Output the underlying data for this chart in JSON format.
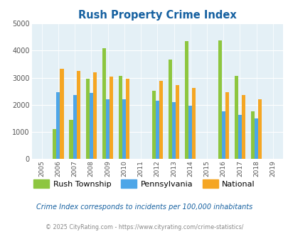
{
  "title": "Rush Property Crime Index",
  "years": [
    2005,
    2006,
    2007,
    2008,
    2009,
    2010,
    2011,
    2012,
    2013,
    2014,
    2015,
    2016,
    2017,
    2018,
    2019
  ],
  "rush_township": [
    null,
    1100,
    1450,
    2950,
    4080,
    3060,
    null,
    2520,
    3680,
    4340,
    null,
    4380,
    3060,
    1770,
    null
  ],
  "pennsylvania": [
    null,
    2470,
    2370,
    2430,
    2200,
    2200,
    null,
    2160,
    2090,
    1970,
    null,
    1760,
    1640,
    1490,
    null
  ],
  "national": [
    null,
    3340,
    3240,
    3210,
    3040,
    2950,
    null,
    2880,
    2740,
    2620,
    null,
    2470,
    2370,
    2200,
    null
  ],
  "rush_color": "#8dc63f",
  "pa_color": "#4da6e8",
  "national_color": "#f5a623",
  "plot_bg": "#e4f0f6",
  "title_color": "#1560a0",
  "ylabel_max": 5000,
  "yticks": [
    0,
    1000,
    2000,
    3000,
    4000,
    5000
  ],
  "footnote1": "Crime Index corresponds to incidents per 100,000 inhabitants",
  "footnote2": "© 2025 CityRating.com - https://www.cityrating.com/crime-statistics/",
  "legend_labels": [
    "Rush Township",
    "Pennsylvania",
    "National"
  ],
  "bar_width": 0.22
}
